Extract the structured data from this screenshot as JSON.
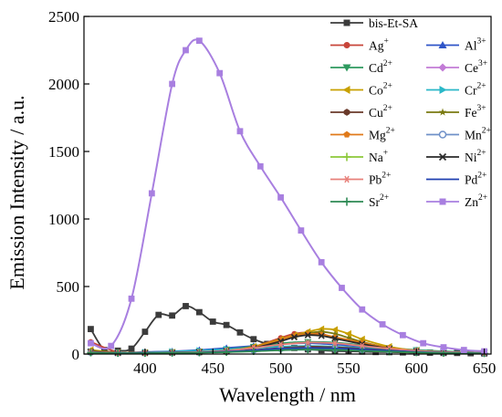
{
  "chart_data": {
    "type": "line",
    "title": "",
    "xlabel": "Wavelength / nm",
    "ylabel": "Emission Intensity / a.u.",
    "xlim": [
      355,
      655
    ],
    "ylim": [
      0,
      2500
    ],
    "x_ticks": [
      400,
      450,
      500,
      550,
      600,
      650
    ],
    "y_ticks": [
      0,
      500,
      1000,
      1500,
      2000,
      2500
    ],
    "grid": false,
    "legend_position": "top-right",
    "series": [
      {
        "name": "bis-Et-SA",
        "base": "bis-Et-SA",
        "sup": "",
        "color": "#3b3b3b",
        "marker": "square",
        "x": [
          360,
          370,
          380,
          390,
          400,
          410,
          420,
          430,
          440,
          450,
          460,
          470,
          480,
          490,
          500,
          510,
          520,
          530,
          540,
          550,
          560,
          570,
          580,
          590,
          600,
          610,
          620,
          630,
          640,
          650
        ],
        "y": [
          185,
          30,
          25,
          40,
          165,
          290,
          285,
          355,
          310,
          240,
          215,
          160,
          110,
          75,
          55,
          45,
          35,
          28,
          22,
          20,
          18,
          15,
          14,
          12,
          10,
          10,
          8,
          8,
          6,
          5
        ]
      },
      {
        "name": "Ag+",
        "base": "Ag",
        "sup": "+",
        "color": "#c8453a",
        "marker": "circle",
        "x": [
          360,
          380,
          400,
          420,
          440,
          460,
          480,
          500,
          510,
          520,
          530,
          540,
          560,
          580,
          600,
          620,
          650
        ],
        "y": [
          90,
          15,
          10,
          12,
          15,
          25,
          55,
          120,
          150,
          160,
          150,
          120,
          75,
          40,
          22,
          12,
          8
        ]
      },
      {
        "name": "Al3+",
        "base": "Al",
        "sup": "3+",
        "color": "#2f55c8",
        "marker": "triangle-up",
        "x": [
          360,
          380,
          400,
          420,
          440,
          460,
          480,
          500,
          520,
          540,
          560,
          580,
          600,
          620,
          650
        ],
        "y": [
          20,
          10,
          15,
          20,
          30,
          45,
          60,
          75,
          80,
          70,
          55,
          40,
          28,
          18,
          10
        ]
      },
      {
        "name": "Cd2+",
        "base": "Cd",
        "sup": "2+",
        "color": "#2e9a5f",
        "marker": "triangle-down",
        "x": [
          360,
          380,
          400,
          420,
          440,
          460,
          480,
          500,
          520,
          540,
          560,
          580,
          600,
          620,
          650
        ],
        "y": [
          15,
          8,
          10,
          15,
          20,
          35,
          55,
          80,
          90,
          85,
          65,
          45,
          30,
          20,
          10
        ]
      },
      {
        "name": "Ce3+",
        "base": "Ce",
        "sup": "3+",
        "color": "#c27bd6",
        "marker": "diamond",
        "x": [
          360,
          380,
          400,
          420,
          440,
          460,
          480,
          500,
          520,
          540,
          560,
          580,
          600,
          620,
          650
        ],
        "y": [
          12,
          8,
          10,
          12,
          15,
          20,
          30,
          45,
          50,
          45,
          35,
          25,
          18,
          12,
          8
        ]
      },
      {
        "name": "Co2+",
        "base": "Co",
        "sup": "2+",
        "color": "#c8a000",
        "marker": "triangle-left",
        "x": [
          360,
          380,
          400,
          420,
          440,
          460,
          480,
          500,
          510,
          520,
          530,
          540,
          550,
          560,
          580,
          600,
          620,
          650
        ],
        "y": [
          30,
          10,
          10,
          12,
          15,
          25,
          55,
          110,
          140,
          165,
          185,
          180,
          150,
          110,
          55,
          25,
          15,
          8
        ]
      },
      {
        "name": "Cr2+",
        "base": "Cr",
        "sup": "2+",
        "color": "#2ab8c8",
        "marker": "triangle-right",
        "x": [
          360,
          380,
          400,
          420,
          440,
          460,
          480,
          500,
          520,
          540,
          560,
          580,
          600,
          620,
          650
        ],
        "y": [
          18,
          10,
          12,
          18,
          25,
          35,
          45,
          55,
          60,
          55,
          45,
          35,
          25,
          15,
          8
        ]
      },
      {
        "name": "Cu2+",
        "base": "Cu",
        "sup": "2+",
        "color": "#6a3a2a",
        "marker": "hexagon",
        "x": [
          360,
          380,
          400,
          420,
          440,
          460,
          480,
          500,
          520,
          540,
          560,
          580,
          600,
          620,
          650
        ],
        "y": [
          15,
          8,
          8,
          10,
          12,
          18,
          30,
          45,
          55,
          50,
          40,
          28,
          18,
          12,
          6
        ]
      },
      {
        "name": "Fe3+",
        "base": "Fe",
        "sup": "3+",
        "color": "#7a7a10",
        "marker": "star",
        "x": [
          360,
          380,
          400,
          420,
          440,
          460,
          480,
          500,
          510,
          520,
          530,
          540,
          550,
          560,
          580,
          600,
          620,
          650
        ],
        "y": [
          25,
          10,
          10,
          12,
          15,
          25,
          50,
          100,
          135,
          155,
          165,
          150,
          120,
          90,
          45,
          22,
          12,
          6
        ]
      },
      {
        "name": "Mg2+",
        "base": "Mg",
        "sup": "2+",
        "color": "#e07a1a",
        "marker": "pentagon",
        "x": [
          360,
          380,
          400,
          420,
          440,
          460,
          480,
          500,
          510,
          520,
          530,
          540,
          560,
          580,
          600,
          620,
          650
        ],
        "y": [
          20,
          10,
          10,
          12,
          15,
          25,
          50,
          105,
          135,
          150,
          145,
          125,
          85,
          45,
          22,
          12,
          6
        ]
      },
      {
        "name": "Mn2+",
        "base": "Mn",
        "sup": "2+",
        "color": "#6f90c8",
        "marker": "circle-open",
        "x": [
          360,
          380,
          400,
          420,
          440,
          460,
          480,
          500,
          520,
          540,
          560,
          580,
          600,
          620,
          650
        ],
        "y": [
          12,
          8,
          8,
          10,
          12,
          18,
          28,
          40,
          45,
          40,
          32,
          22,
          15,
          10,
          5
        ]
      },
      {
        "name": "Na+",
        "base": "Na",
        "sup": "+",
        "color": "#8cc83a",
        "marker": "plus",
        "x": [
          360,
          380,
          400,
          420,
          440,
          460,
          480,
          500,
          520,
          540,
          560,
          580,
          600,
          620,
          650
        ],
        "y": [
          10,
          8,
          8,
          10,
          12,
          15,
          22,
          30,
          35,
          32,
          25,
          18,
          12,
          8,
          5
        ]
      },
      {
        "name": "Ni2+",
        "base": "Ni",
        "sup": "2+",
        "color": "#2a2a2a",
        "marker": "cross",
        "x": [
          360,
          380,
          400,
          420,
          440,
          460,
          480,
          500,
          510,
          520,
          530,
          540,
          560,
          580,
          600,
          620,
          650
        ],
        "y": [
          18,
          8,
          8,
          10,
          14,
          22,
          45,
          95,
          125,
          140,
          135,
          115,
          75,
          40,
          20,
          10,
          5
        ]
      },
      {
        "name": "Pb2+",
        "base": "Pb",
        "sup": "2+",
        "color": "#e8807a",
        "marker": "asterisk",
        "x": [
          360,
          380,
          400,
          420,
          440,
          460,
          480,
          500,
          520,
          540,
          560,
          580,
          600,
          620,
          650
        ],
        "y": [
          15,
          8,
          8,
          12,
          15,
          25,
          45,
          70,
          85,
          80,
          60,
          40,
          25,
          15,
          8
        ]
      },
      {
        "name": "Pd2+",
        "base": "Pd",
        "sup": "2+",
        "color": "#1f3fb0",
        "marker": "none",
        "x": [
          360,
          380,
          400,
          420,
          440,
          460,
          480,
          500,
          520,
          540,
          560,
          580,
          600,
          620,
          650
        ],
        "y": [
          12,
          8,
          8,
          10,
          12,
          18,
          28,
          40,
          45,
          42,
          35,
          25,
          16,
          10,
          5
        ]
      },
      {
        "name": "Sr2+",
        "base": "Sr",
        "sup": "2+",
        "color": "#2e8a55",
        "marker": "plus",
        "x": [
          360,
          380,
          400,
          420,
          440,
          460,
          480,
          500,
          520,
          540,
          560,
          580,
          600,
          620,
          650
        ],
        "y": [
          10,
          6,
          6,
          8,
          10,
          14,
          20,
          28,
          32,
          30,
          24,
          18,
          12,
          8,
          5
        ]
      },
      {
        "name": "Zn2+",
        "base": "Zn",
        "sup": "2+",
        "color": "#a87fe0",
        "marker": "square",
        "x": [
          360,
          375,
          390,
          405,
          420,
          430,
          440,
          455,
          470,
          485,
          500,
          515,
          530,
          545,
          560,
          575,
          590,
          605,
          620,
          635,
          650
        ],
        "y": [
          80,
          60,
          410,
          1190,
          2000,
          2250,
          2320,
          2080,
          1650,
          1390,
          1160,
          915,
          680,
          490,
          330,
          220,
          140,
          80,
          50,
          30,
          20
        ]
      }
    ]
  }
}
